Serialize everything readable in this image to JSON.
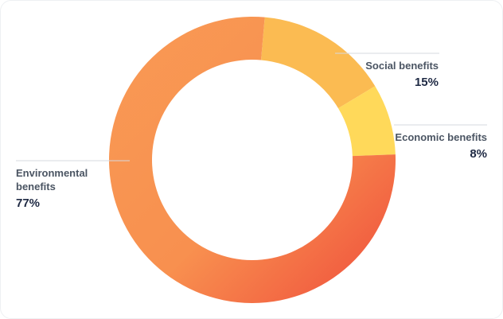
{
  "chart_data": {
    "type": "pie",
    "variant": "donut",
    "slices": [
      {
        "label": "Social benefits",
        "value": 15,
        "display": "15%",
        "color": "#FBBB52"
      },
      {
        "label": "Economic benefits",
        "value": 8,
        "display": "8%",
        "color": "#FFD95A"
      },
      {
        "label": "Environmental benefits",
        "value": 77,
        "display": "77%",
        "color_start": "#F99A55",
        "color_end": "#F0503D"
      }
    ],
    "legend": "none",
    "grid": false
  }
}
